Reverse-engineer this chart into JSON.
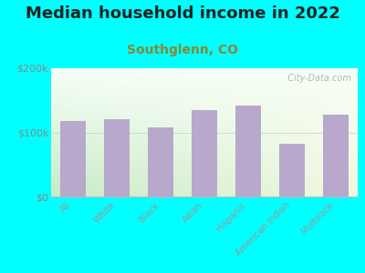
{
  "title": "Median household income in 2022",
  "subtitle": "Southglenn, CO",
  "categories": [
    "All",
    "White",
    "Black",
    "Asian",
    "Hispanic",
    "American Indian",
    "Multirace"
  ],
  "values": [
    118000,
    120000,
    108000,
    135000,
    142000,
    82000,
    128000
  ],
  "bar_color": "#b8a8cc",
  "background_color": "#00ffff",
  "ylim": [
    0,
    200000
  ],
  "ytick_labels": [
    "$0",
    "$100k",
    "$200k"
  ],
  "ytick_values": [
    0,
    100000,
    200000
  ],
  "title_fontsize": 13,
  "subtitle_fontsize": 10,
  "tick_label_color": "#999999",
  "ytick_color": "#888888",
  "watermark": "  City-Data.com",
  "watermark_icon": "ⓘ"
}
